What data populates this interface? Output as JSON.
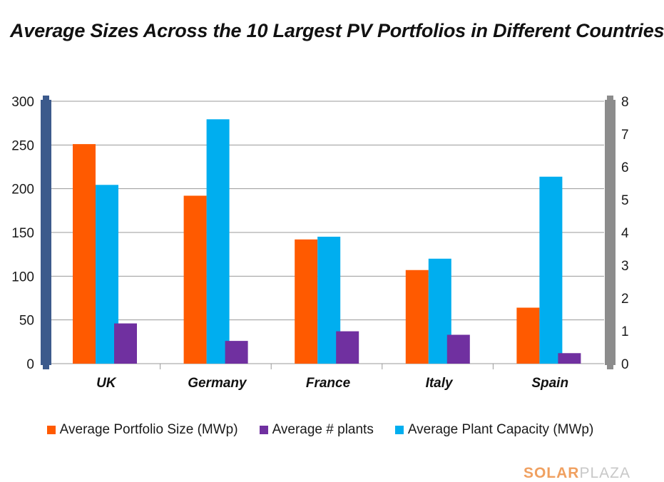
{
  "chart_data": {
    "type": "bar",
    "title": "Average Sizes Across the 10 Largest PV Portfolios in Different Countries",
    "categories": [
      "UK",
      "Germany",
      "France",
      "Italy",
      "Spain"
    ],
    "series": [
      {
        "name": "Average Portfolio Size (MWp)",
        "axis": "left",
        "color": "#FF5A00",
        "values": [
          251,
          192,
          142,
          107,
          64
        ]
      },
      {
        "name": "Average Plant Capacity (MWp)",
        "axis": "right",
        "color": "#00AEEF",
        "values": [
          5.45,
          7.45,
          3.87,
          3.2,
          5.7
        ]
      },
      {
        "name": "Average # plants",
        "axis": "left",
        "color": "#7030A0",
        "values": [
          46,
          26,
          37,
          33,
          12
        ]
      }
    ],
    "y_left": {
      "range": [
        0,
        300
      ],
      "ticks": [
        "0",
        "50",
        "100",
        "150",
        "200",
        "250",
        "300"
      ]
    },
    "y_right": {
      "range": [
        0,
        8
      ],
      "ticks": [
        "0",
        "1",
        "2",
        "3",
        "4",
        "5",
        "6",
        "7",
        "8"
      ]
    },
    "grid": true,
    "legend_position": "bottom",
    "legend_order": [
      "Average Portfolio Size (MWp)",
      "Average # plants",
      "Average Plant Capacity (MWp)"
    ],
    "axis_colors": {
      "left": "#3C5A8C",
      "right": "#8C8C8C"
    }
  },
  "brand": {
    "bold": "SOLAR",
    "light": "PLAZA"
  }
}
